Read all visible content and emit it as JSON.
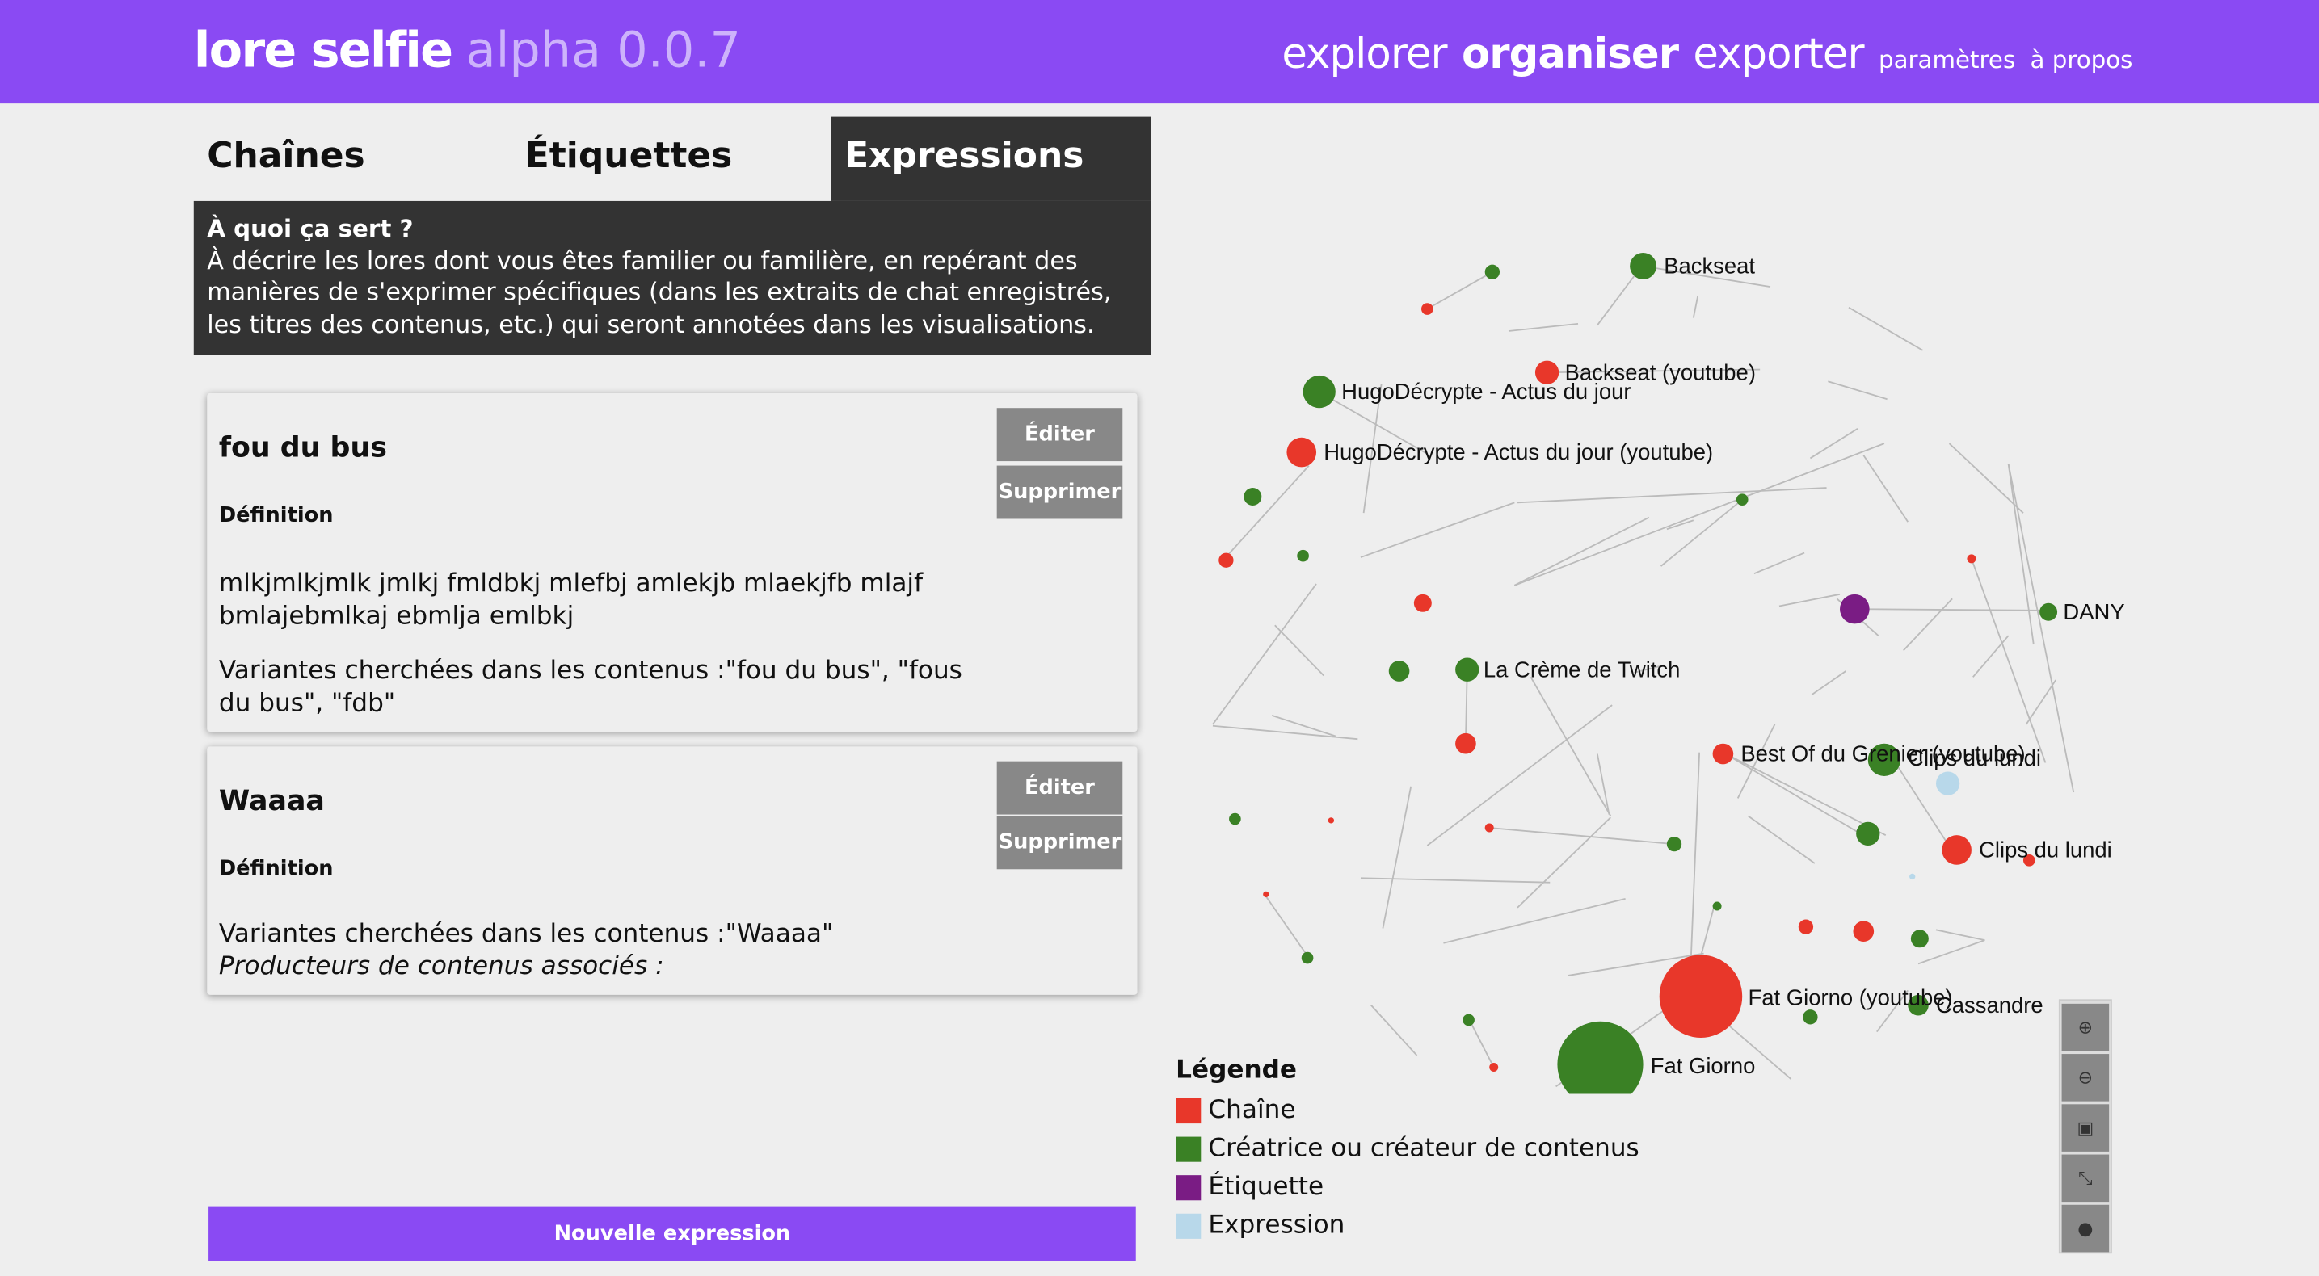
{
  "brand": {
    "name": "lore selfie",
    "version": "alpha 0.0.7"
  },
  "nav": {
    "explore": "explorer",
    "organize": "organiser",
    "export": "exporter",
    "settings": "paramètres",
    "about": "à propos"
  },
  "tabs": [
    "Chaînes",
    "Étiquettes",
    "Expressions"
  ],
  "info": {
    "title": "À quoi ça sert ?",
    "text": "À décrire les lores dont vous êtes familier ou familière, en repérant des manières de s'exprimer spécifiques (dans les extraits de chat enregistrés, les titres des contenus, etc.) qui seront annotées dans les visualisations."
  },
  "buttons": {
    "edit": "Éditer",
    "delete": "Supprimer",
    "new": "Nouvelle expression"
  },
  "expressions": [
    {
      "name": "fou du bus",
      "def_label": "Définition",
      "definition": "mlkjmlkjmlk jmlkj fmldbkj mlefbj amlekjb mlaekjfb mlajf bmlajebmlkaj ebmlja emlbkj",
      "variants": "Variantes cherchées dans les contenus :\"fou du bus\", \"fous du bus\", \"fdb\""
    },
    {
      "name": "Waaaa",
      "def_label": "Définition",
      "variants": "Variantes cherchées dans les contenus :\"Waaaa\"",
      "producers": "Producteurs de contenus associés :"
    }
  ],
  "legend": {
    "title": "Légende",
    "items": [
      {
        "label": "Chaîne",
        "color": "#e8372a"
      },
      {
        "label": "Créatrice ou créateur de contenus",
        "color": "#3a8125"
      },
      {
        "label": "Étiquette",
        "color": "#7a1c84"
      },
      {
        "label": "Expression",
        "color": "#b8d8ea"
      }
    ]
  },
  "graph_labels": {
    "backseat": "Backseat",
    "backseat_yt": "Backseat (youtube)",
    "hugo": "HugoDécrypte - Actus du jour",
    "hugo_yt": "HugoDécrypte - Actus du jour (youtube)",
    "dany": "DANY",
    "creme": "La Crème de Twitch",
    "bestof": "Best Of du Grenier (youtube)",
    "clips1": "Clips du lundi",
    "clips2": "Clips du lundi",
    "fatgiorno_yt": "Fat Giorno (youtube)",
    "cassandre": "Cassandre",
    "fatgiorno": "Fat Giorno"
  },
  "icons": [
    "zoom-in-icon",
    "zoom-out-icon",
    "fit-icon",
    "fullscreen-icon",
    "play-icon"
  ]
}
